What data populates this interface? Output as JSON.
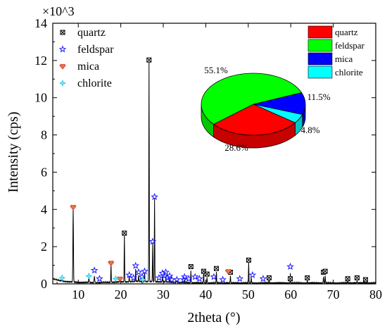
{
  "chart_data": {
    "type": "line",
    "xlabel": "2theta (°)",
    "ylabel": "Intensity (cps)",
    "y_multiplier_label": "×10^3",
    "xlim": [
      4,
      80
    ],
    "ylim": [
      0,
      14
    ],
    "x_ticks": [
      10,
      20,
      30,
      40,
      50,
      60,
      70,
      80
    ],
    "y_ticks": [
      0,
      2,
      4,
      6,
      8,
      10,
      12,
      14
    ],
    "grid": false,
    "legend_position": "top-left",
    "legend": [
      {
        "name": "quartz",
        "marker": "boxed-x",
        "color": "#000000"
      },
      {
        "name": "feldspar",
        "marker": "star",
        "color": "#1a1aff"
      },
      {
        "name": "mica",
        "marker": "heart",
        "color": "#e0302c"
      },
      {
        "name": "chlorite",
        "marker": "sparkle",
        "color": "#22c8e8"
      }
    ],
    "pattern_peaks": [
      [
        6.2,
        0.12
      ],
      [
        8.8,
        4.0
      ],
      [
        12.5,
        0.28
      ],
      [
        13.8,
        0.35
      ],
      [
        17.7,
        1.0
      ],
      [
        19.8,
        0.15
      ],
      [
        20.85,
        2.6
      ],
      [
        22.0,
        0.3
      ],
      [
        23.5,
        0.65
      ],
      [
        24.2,
        0.35
      ],
      [
        25.6,
        0.5
      ],
      [
        26.65,
        11.9
      ],
      [
        27.5,
        2.1
      ],
      [
        27.95,
        4.5
      ],
      [
        29.8,
        0.3
      ],
      [
        30.6,
        0.25
      ],
      [
        31.5,
        0.2
      ],
      [
        33.2,
        0.12
      ],
      [
        35.0,
        0.18
      ],
      [
        36.5,
        0.65
      ],
      [
        39.5,
        0.55
      ],
      [
        40.3,
        0.3
      ],
      [
        42.5,
        0.6
      ],
      [
        45.8,
        0.4
      ],
      [
        50.1,
        1.1
      ],
      [
        50.7,
        0.3
      ],
      [
        54.9,
        0.25
      ],
      [
        59.9,
        0.55
      ],
      [
        63.9,
        0.12
      ],
      [
        67.7,
        0.35
      ],
      [
        68.1,
        0.4
      ],
      [
        73.4,
        0.1
      ],
      [
        75.6,
        0.12
      ]
    ],
    "markers": {
      "quartz": [
        [
          20.85,
          2.65
        ],
        [
          26.65,
          11.95
        ],
        [
          36.5,
          0.85
        ],
        [
          39.5,
          0.6
        ],
        [
          40.3,
          0.45
        ],
        [
          42.5,
          0.75
        ],
        [
          45.8,
          0.55
        ],
        [
          50.1,
          1.2
        ],
        [
          54.9,
          0.25
        ],
        [
          59.9,
          0.2
        ],
        [
          63.9,
          0.25
        ],
        [
          67.7,
          0.55
        ],
        [
          68.1,
          0.6
        ],
        [
          73.4,
          0.2
        ],
        [
          75.6,
          0.25
        ],
        [
          77.6,
          0.15
        ]
      ],
      "feldspar": [
        [
          13.8,
          0.65
        ],
        [
          15.0,
          0.2
        ],
        [
          22.0,
          0.4
        ],
        [
          23.0,
          0.25
        ],
        [
          23.5,
          0.9
        ],
        [
          24.2,
          0.55
        ],
        [
          25.0,
          0.3
        ],
        [
          25.6,
          0.6
        ],
        [
          27.5,
          2.2
        ],
        [
          27.95,
          4.6
        ],
        [
          29.0,
          0.25
        ],
        [
          29.8,
          0.5
        ],
        [
          30.3,
          0.35
        ],
        [
          30.6,
          0.55
        ],
        [
          31.0,
          0.25
        ],
        [
          31.5,
          0.35
        ],
        [
          32.0,
          0.15
        ],
        [
          33.2,
          0.15
        ],
        [
          34.8,
          0.15
        ],
        [
          35.0,
          0.3
        ],
        [
          36.0,
          0.2
        ],
        [
          37.5,
          0.3
        ],
        [
          38.5,
          0.2
        ],
        [
          41.9,
          0.3
        ],
        [
          44.0,
          0.15
        ],
        [
          48.0,
          0.2
        ],
        [
          51.0,
          0.4
        ],
        [
          53.5,
          0.2
        ],
        [
          59.9,
          0.85
        ]
      ],
      "mica": [
        [
          8.8,
          4.05
        ],
        [
          17.7,
          1.05
        ],
        [
          19.8,
          0.2
        ],
        [
          45.3,
          0.6
        ]
      ],
      "chlorite": [
        [
          6.2,
          0.25
        ],
        [
          12.5,
          0.35
        ],
        [
          18.8,
          0.2
        ],
        [
          25.2,
          0.15
        ]
      ]
    },
    "pie": {
      "type": "pie",
      "slices": [
        {
          "label": "quartz",
          "value": 28.6,
          "display": "28.6%",
          "color": "#ff0000"
        },
        {
          "label": "feldspar",
          "value": 55.1,
          "display": "55.1%",
          "color": "#00ff00"
        },
        {
          "label": "mica",
          "value": 11.5,
          "display": "11.5%",
          "color": "#0000ff"
        },
        {
          "label": "chlorite",
          "value": 4.8,
          "display": "4.8%",
          "color": "#00ffff"
        }
      ]
    }
  }
}
